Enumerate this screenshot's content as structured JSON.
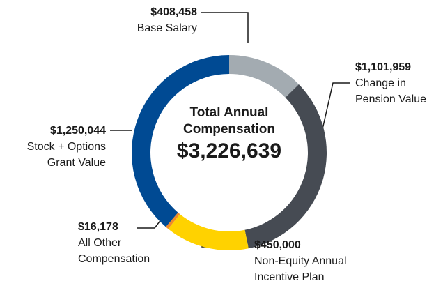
{
  "chart_data": {
    "type": "pie",
    "center_title": "Total Annual Compensation",
    "total": 3226639,
    "total_label": "$3,226,639",
    "categories": [
      "Base Salary",
      "Change in Pension Value",
      "Non-Equity Annual Incentive Plan",
      "All Other Compensation",
      "Stock + Options Grant Value"
    ],
    "values": [
      408458,
      1101959,
      450000,
      16178,
      1250044
    ],
    "value_labels": [
      "$408,458",
      "$1,101,959",
      "$450,000",
      "$16,178",
      "$1,250,044"
    ],
    "colors": [
      "#a3abb1",
      "#464b53",
      "#ffd200",
      "#ef8a2a",
      "#004a93"
    ]
  }
}
